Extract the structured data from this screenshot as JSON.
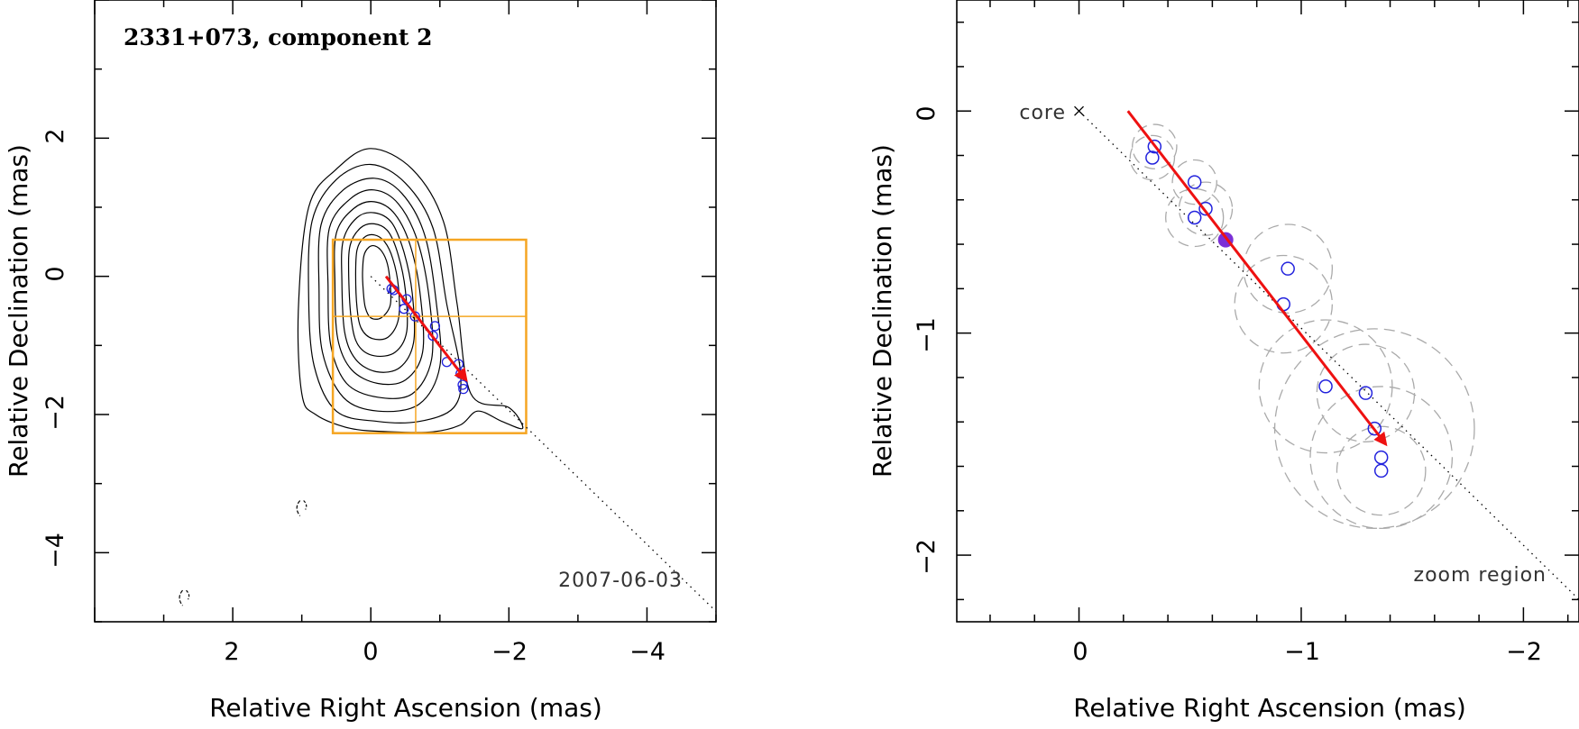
{
  "chart_data": [
    {
      "type": "scatter",
      "title": "2331+073, component 2",
      "xlabel": "Relative Right Ascension (mas)",
      "ylabel": "Relative Declination (mas)",
      "xlim": [
        4.0,
        -5.0
      ],
      "ylim": [
        -5.0,
        4.0
      ],
      "xticks": [
        2,
        0,
        -2,
        -4
      ],
      "yticks": [
        2,
        0,
        -2,
        -4
      ],
      "xtick_labels": [
        "2",
        "0",
        "−2",
        "−4"
      ],
      "ytick_labels": [
        "2",
        "0",
        "−2",
        "−4"
      ],
      "date_label": "2007-06-03",
      "contours": [
        {
          "points": [
            [
              1.0,
              -1.7
            ],
            [
              1.05,
              -0.5
            ],
            [
              0.9,
              1.0
            ],
            [
              0.5,
              1.55
            ],
            [
              0.0,
              1.85
            ],
            [
              -0.6,
              1.55
            ],
            [
              -1.05,
              0.8
            ],
            [
              -1.25,
              -0.4
            ],
            [
              -1.45,
              -1.7
            ],
            [
              -2.0,
              -1.9
            ],
            [
              -2.2,
              -2.2
            ],
            [
              -1.9,
              -2.1
            ],
            [
              -1.55,
              -1.95
            ],
            [
              -1.3,
              -2.15
            ],
            [
              -0.9,
              -2.25
            ],
            [
              -0.3,
              -2.25
            ],
            [
              0.3,
              -2.2
            ],
            [
              0.8,
              -2.0
            ]
          ]
        },
        {
          "points": [
            [
              0.9,
              -0.3
            ],
            [
              0.85,
              0.8
            ],
            [
              0.5,
              1.4
            ],
            [
              0.0,
              1.62
            ],
            [
              -0.5,
              1.35
            ],
            [
              -0.9,
              0.7
            ],
            [
              -1.1,
              -0.4
            ],
            [
              -1.3,
              -1.4
            ],
            [
              -1.2,
              -1.9
            ],
            [
              -0.7,
              -2.1
            ],
            [
              -0.1,
              -2.1
            ],
            [
              0.5,
              -1.95
            ],
            [
              0.82,
              -1.3
            ]
          ]
        },
        {
          "points": [
            [
              0.75,
              -0.2
            ],
            [
              0.72,
              0.75
            ],
            [
              0.4,
              1.25
            ],
            [
              -0.05,
              1.42
            ],
            [
              -0.45,
              1.2
            ],
            [
              -0.78,
              0.6
            ],
            [
              -0.95,
              -0.4
            ],
            [
              -1.0,
              -1.3
            ],
            [
              -0.7,
              -1.85
            ],
            [
              -0.1,
              -1.95
            ],
            [
              0.4,
              -1.75
            ],
            [
              0.7,
              -1.1
            ]
          ]
        },
        {
          "points": [
            [
              0.62,
              -0.15
            ],
            [
              0.6,
              0.7
            ],
            [
              0.3,
              1.12
            ],
            [
              -0.05,
              1.25
            ],
            [
              -0.4,
              1.05
            ],
            [
              -0.68,
              0.5
            ],
            [
              -0.85,
              -0.35
            ],
            [
              -0.88,
              -1.2
            ],
            [
              -0.6,
              -1.7
            ],
            [
              -0.1,
              -1.75
            ],
            [
              0.35,
              -1.55
            ],
            [
              0.58,
              -1.0
            ]
          ]
        },
        {
          "points": [
            [
              0.52,
              -0.1
            ],
            [
              0.5,
              0.62
            ],
            [
              0.25,
              0.98
            ],
            [
              -0.05,
              1.08
            ],
            [
              -0.35,
              0.9
            ],
            [
              -0.58,
              0.42
            ],
            [
              -0.72,
              -0.3
            ],
            [
              -0.75,
              -1.1
            ],
            [
              -0.5,
              -1.5
            ],
            [
              -0.1,
              -1.55
            ],
            [
              0.28,
              -1.35
            ],
            [
              0.48,
              -0.9
            ]
          ]
        },
        {
          "points": [
            [
              0.42,
              -0.05
            ],
            [
              0.4,
              0.52
            ],
            [
              0.2,
              0.85
            ],
            [
              -0.05,
              0.92
            ],
            [
              -0.3,
              0.78
            ],
            [
              -0.48,
              0.35
            ],
            [
              -0.6,
              -0.25
            ],
            [
              -0.62,
              -0.95
            ],
            [
              -0.42,
              -1.32
            ],
            [
              -0.08,
              -1.38
            ],
            [
              0.22,
              -1.2
            ],
            [
              0.38,
              -0.8
            ]
          ]
        },
        {
          "points": [
            [
              0.32,
              0.0
            ],
            [
              0.3,
              0.45
            ],
            [
              0.15,
              0.7
            ],
            [
              -0.05,
              0.76
            ],
            [
              -0.25,
              0.65
            ],
            [
              -0.4,
              0.3
            ],
            [
              -0.5,
              -0.2
            ],
            [
              -0.52,
              -0.8
            ],
            [
              -0.35,
              -1.1
            ],
            [
              -0.05,
              -1.15
            ],
            [
              0.18,
              -1.0
            ],
            [
              0.28,
              -0.65
            ]
          ]
        },
        {
          "points": [
            [
              0.22,
              0.02
            ],
            [
              0.2,
              0.38
            ],
            [
              0.1,
              0.56
            ],
            [
              -0.05,
              0.6
            ],
            [
              -0.2,
              0.5
            ],
            [
              -0.32,
              0.25
            ],
            [
              -0.4,
              -0.15
            ],
            [
              -0.4,
              -0.62
            ],
            [
              -0.25,
              -0.88
            ],
            [
              -0.02,
              -0.9
            ],
            [
              0.14,
              -0.75
            ],
            [
              0.2,
              -0.45
            ]
          ]
        },
        {
          "points": [
            [
              0.12,
              0.05
            ],
            [
              0.1,
              0.3
            ],
            [
              0.03,
              0.42
            ],
            [
              -0.06,
              0.44
            ],
            [
              -0.16,
              0.36
            ],
            [
              -0.24,
              0.18
            ],
            [
              -0.28,
              -0.1
            ],
            [
              -0.28,
              -0.42
            ],
            [
              -0.15,
              -0.6
            ],
            [
              0.0,
              -0.6
            ],
            [
              0.08,
              -0.45
            ],
            [
              0.11,
              -0.2
            ]
          ]
        }
      ],
      "noise_contours": [
        {
          "center": [
            1.0,
            -3.35
          ]
        },
        {
          "center": [
            2.7,
            -4.65
          ]
        }
      ],
      "components": [
        {
          "x": -0.3,
          "y": -0.18
        },
        {
          "x": -0.33,
          "y": -0.2
        },
        {
          "x": -0.52,
          "y": -0.33
        },
        {
          "x": -0.48,
          "y": -0.47
        },
        {
          "x": -0.64,
          "y": -0.58
        },
        {
          "x": -0.93,
          "y": -0.72
        },
        {
          "x": -0.9,
          "y": -0.86
        },
        {
          "x": -1.1,
          "y": -1.24
        },
        {
          "x": -1.27,
          "y": -1.27
        },
        {
          "x": -1.3,
          "y": -1.41
        },
        {
          "x": -1.33,
          "y": -1.57
        },
        {
          "x": -1.34,
          "y": -1.63
        }
      ],
      "zoom_box": {
        "x_range": [
          0.55,
          -2.25
        ],
        "y_range": [
          0.53,
          -2.27
        ],
        "divide_x": -0.65,
        "divide_y": -0.58
      },
      "motion_arrow": {
        "from": [
          -0.22,
          0.0
        ],
        "to": [
          -1.38,
          -1.5
        ]
      },
      "trajectory_line": {
        "from": [
          0.0,
          0.0
        ],
        "to": [
          -5.0,
          -4.85
        ]
      }
    },
    {
      "type": "scatter",
      "title": "",
      "xlabel": "Relative Right Ascension (mas)",
      "ylabel": "Relative Declination (mas)",
      "xlim": [
        0.55,
        -2.25
      ],
      "ylim": [
        -2.3,
        0.5
      ],
      "xticks": [
        0,
        -1,
        -2
      ],
      "yticks": [
        0,
        -1,
        -2
      ],
      "xtick_labels": [
        "0",
        "−1",
        "−2"
      ],
      "ytick_labels": [
        "0",
        "−1",
        "−2"
      ],
      "core_label": "core",
      "zoom_label": "zoom region",
      "components": [
        {
          "x": -0.34,
          "y": -0.16,
          "r": 0.1
        },
        {
          "x": -0.33,
          "y": -0.21,
          "r": 0.1
        },
        {
          "x": -0.52,
          "y": -0.32,
          "r": 0.1
        },
        {
          "x": -0.57,
          "y": -0.44,
          "r": 0.12
        },
        {
          "x": -0.52,
          "y": -0.48,
          "r": 0.13
        },
        {
          "x": -0.94,
          "y": -0.71,
          "r": 0.2
        },
        {
          "x": -0.92,
          "y": -0.87,
          "r": 0.22
        },
        {
          "x": -1.11,
          "y": -1.24,
          "r": 0.3
        },
        {
          "x": -1.29,
          "y": -1.27,
          "r": 0.22
        },
        {
          "x": -1.33,
          "y": -1.43,
          "r": 0.45
        },
        {
          "x": -1.36,
          "y": -1.56,
          "r": 0.32
        },
        {
          "x": -1.36,
          "y": -1.62,
          "r": 0.2
        }
      ],
      "highlighted_component": {
        "x": -0.66,
        "y": -0.58
      },
      "motion_arrow": {
        "from": [
          -0.22,
          0.0
        ],
        "to": [
          -1.38,
          -1.5
        ]
      },
      "trajectory_line": {
        "from": [
          0.0,
          0.0
        ],
        "to": [
          -2.25,
          -2.2
        ]
      }
    }
  ],
  "colors": {
    "axis": "#000000",
    "contour": "#000000",
    "component": "#2222dd",
    "highlight": "#7b2fd6",
    "arrow": "#ee1111",
    "zoom_box": "#f5a623",
    "dashed_circle": "#aaaaaa"
  }
}
